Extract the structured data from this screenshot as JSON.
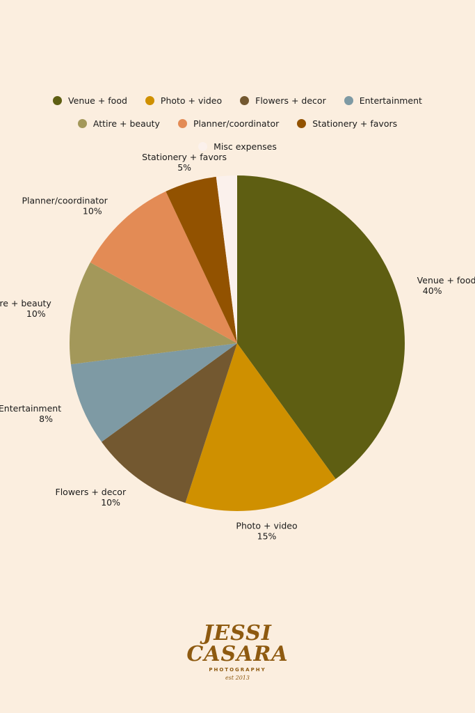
{
  "chart_data": {
    "type": "pie",
    "categories": [
      "Venue + food",
      "Photo + video",
      "Flowers + decor",
      "Entertainment",
      "Attire + beauty",
      "Planner/coordinator",
      "Stationery + favors",
      "Misc expenses"
    ],
    "values": [
      40,
      15,
      10,
      8,
      10,
      10,
      5,
      2
    ],
    "data_labels": [
      "40%",
      "15%",
      "10%",
      "8%",
      "10%",
      "10%",
      "5%",
      ""
    ],
    "colors": [
      "#5E5E12",
      "#CF9000",
      "#735830",
      "#7E9AA4",
      "#A3985A",
      "#E38B55",
      "#925200",
      "#FBF1EC"
    ],
    "legend_position": "top",
    "start_angle": "top, clockwise"
  },
  "logo": {
    "line1": "JESSI",
    "line2": "CASARA",
    "line3": "PHOTOGRAPHY",
    "line4": "est 2013"
  }
}
